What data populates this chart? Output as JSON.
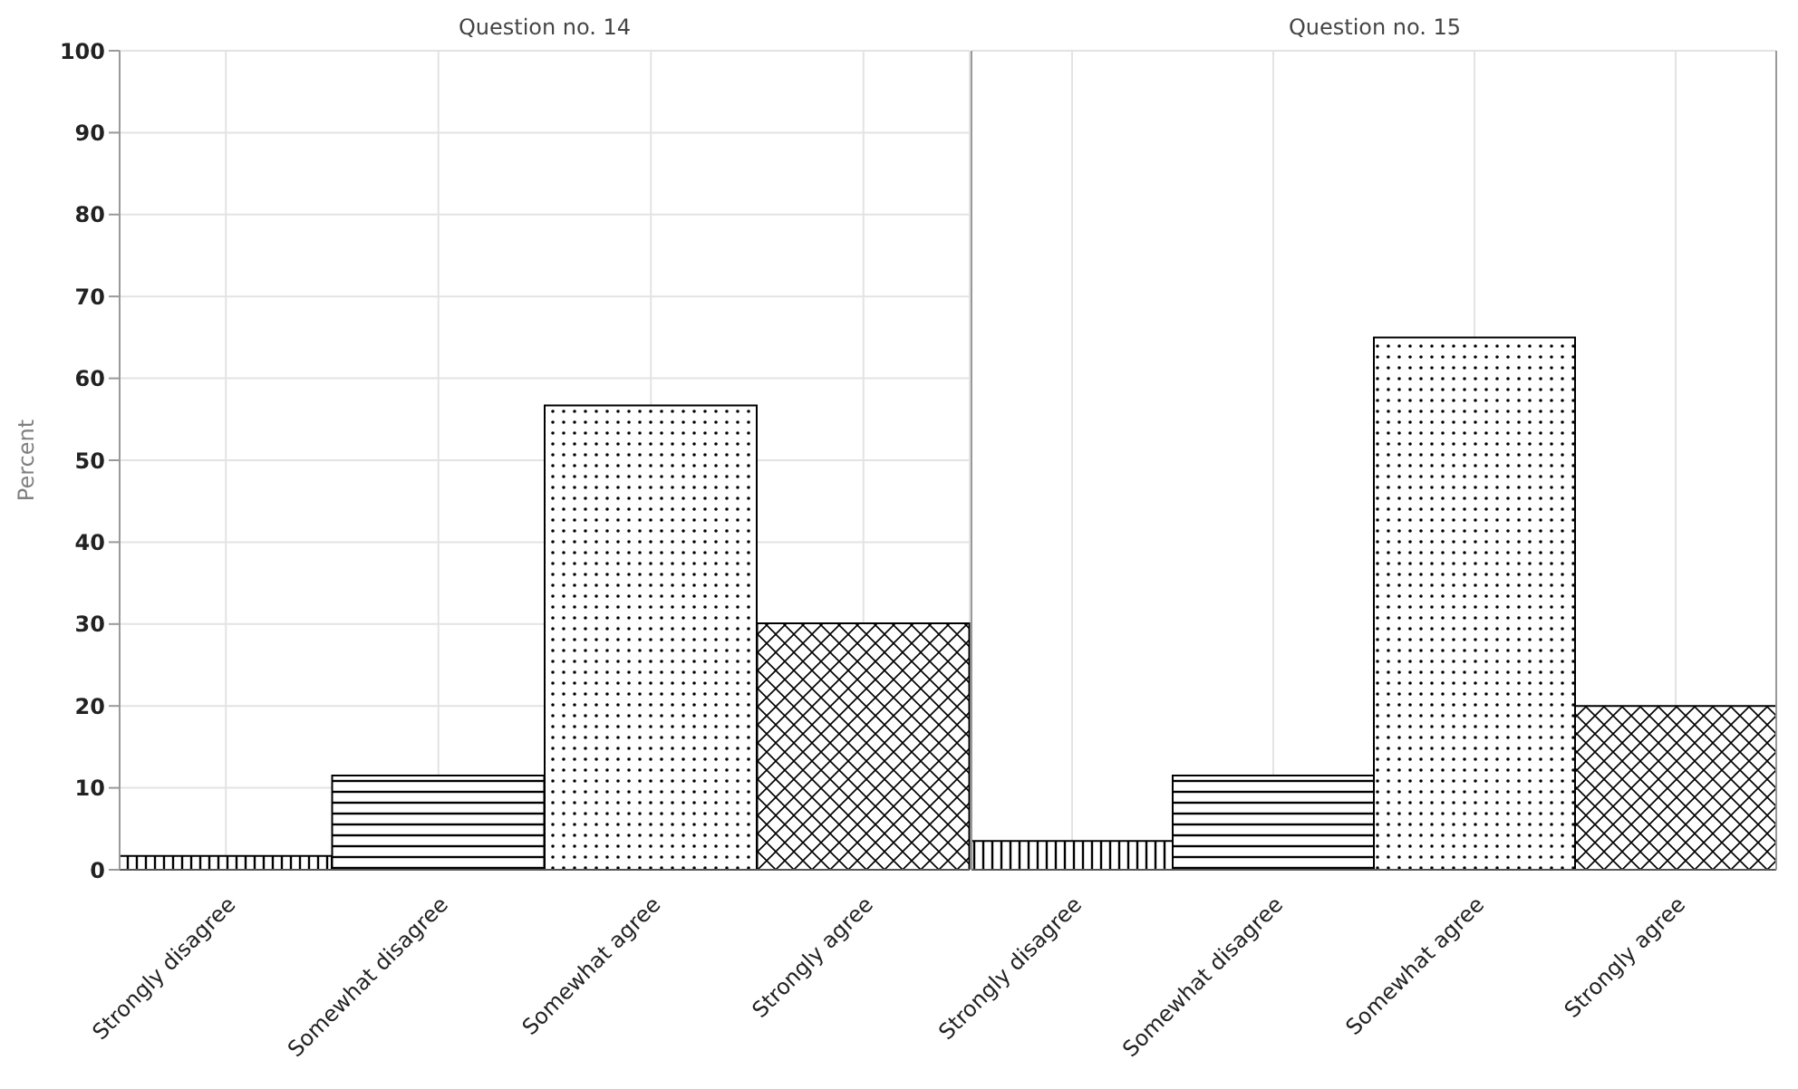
{
  "chart_data": [
    {
      "type": "bar",
      "title": "Question no. 14",
      "ylabel": "Percent",
      "categories": [
        "Strongly disagree",
        "Somewhat disagree",
        "Somewhat agree",
        "Strongly agree"
      ],
      "values": [
        1.7,
        11.5,
        56.7,
        30.1
      ],
      "color": "#000000",
      "ylim": [
        0,
        100
      ],
      "yticks": [
        0,
        10,
        20,
        30,
        40,
        50,
        60,
        70,
        80,
        90,
        100
      ],
      "grid": true
    },
    {
      "type": "bar",
      "title": "Question no. 15",
      "categories": [
        "Strongly disagree",
        "Somewhat disagree",
        "Somewhat agree",
        "Strongly agree"
      ],
      "values": [
        3.5,
        11.5,
        65,
        20
      ],
      "color": "#000000",
      "ylim": [
        0,
        100
      ],
      "yticks": [
        0,
        10,
        20,
        30,
        40,
        50,
        60,
        70,
        80,
        90,
        100
      ],
      "grid": true,
      "tick_labels": "x"
    }
  ]
}
